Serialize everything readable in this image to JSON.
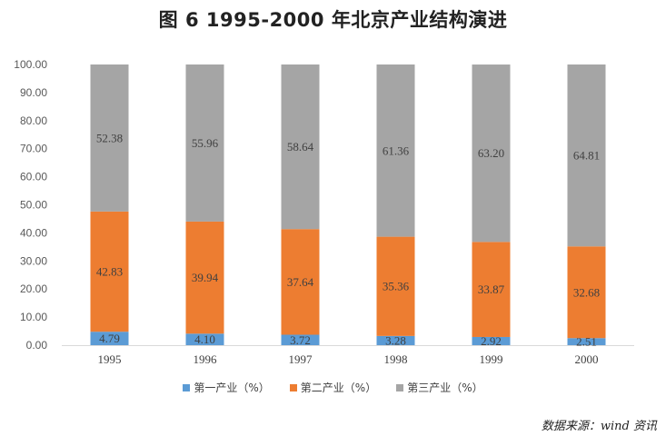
{
  "title": "图 6   1995-2000 年北京产业结构演进",
  "source": "数据来源：wind 资讯",
  "chart_data": {
    "type": "bar",
    "stacked": true,
    "categories": [
      "1995",
      "1996",
      "1997",
      "1998",
      "1999",
      "2000"
    ],
    "ylim": [
      0,
      100
    ],
    "yticks": [
      "0.00",
      "10.00",
      "20.00",
      "30.00",
      "40.00",
      "50.00",
      "60.00",
      "70.00",
      "80.00",
      "90.00",
      "100.00"
    ],
    "grid": false,
    "legend_position": "bottom",
    "series": [
      {
        "name": "第一产业（%）",
        "color": "#5B9BD5",
        "values": [
          4.79,
          4.1,
          3.72,
          3.28,
          2.92,
          2.51
        ],
        "labels": [
          "4.79",
          "4.10",
          "3.72",
          "3.28",
          "2.92",
          "2.51"
        ]
      },
      {
        "name": "第二产业（%）",
        "color": "#ED7D31",
        "values": [
          42.83,
          39.94,
          37.64,
          35.36,
          33.87,
          32.68
        ],
        "labels": [
          "42.83",
          "39.94",
          "37.64",
          "35.36",
          "33.87",
          "32.68"
        ]
      },
      {
        "name": "第三产业（%）",
        "color": "#A5A5A5",
        "values": [
          52.38,
          55.96,
          58.64,
          61.36,
          63.2,
          64.81
        ],
        "labels": [
          "52.38",
          "55.96",
          "58.64",
          "61.36",
          "63.20",
          "64.81"
        ]
      }
    ]
  }
}
